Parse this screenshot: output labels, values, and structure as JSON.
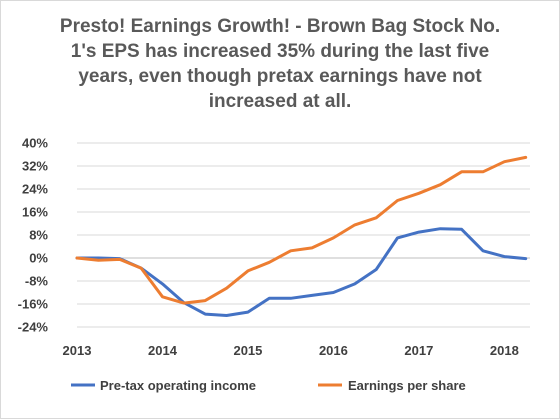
{
  "colors": {
    "series_pretax": "#4472c4",
    "series_eps": "#ed7d31",
    "grid": "#d9d9d9",
    "text": "#595959"
  },
  "chart_data": {
    "type": "line",
    "title_lines": [
      "Presto! Earnings Growth! - Brown Bag Stock No.",
      "1's EPS has increased 35% during the last five",
      "years, even though pretax earnings have not",
      "increased at all."
    ],
    "xlabel": "",
    "ylabel": "",
    "xlim": [
      2013,
      2018.3
    ],
    "ylim": [
      -0.24,
      0.4
    ],
    "x_ticks": [
      2013,
      2014,
      2015,
      2016,
      2017,
      2018
    ],
    "x_tick_labels": [
      "2013",
      "2014",
      "2015",
      "2016",
      "2017",
      "2018"
    ],
    "y_ticks": [
      -0.24,
      -0.16,
      -0.08,
      0.0,
      0.08,
      0.16,
      0.24,
      0.32,
      0.4
    ],
    "y_tick_labels": [
      "-24%",
      "-16%",
      "-8%",
      "0%",
      "8%",
      "16%",
      "24%",
      "32%",
      "40%"
    ],
    "grid": "horizontal",
    "legend_position": "bottom",
    "series": [
      {
        "name": "Pre-tax operating income",
        "color": "#4472c4",
        "x": [
          2013,
          2013.25,
          2013.5,
          2013.75,
          2014,
          2014.25,
          2014.5,
          2014.75,
          2015,
          2015.25,
          2015.5,
          2015.75,
          2016,
          2016.25,
          2016.5,
          2016.75,
          2017,
          2017.25,
          2017.5,
          2017.75,
          2018,
          2018.25
        ],
        "values": [
          0.0,
          0.0,
          -0.002,
          -0.035,
          -0.09,
          -0.155,
          -0.195,
          -0.2,
          -0.188,
          -0.14,
          -0.14,
          -0.13,
          -0.12,
          -0.09,
          -0.04,
          0.07,
          0.09,
          0.102,
          0.1,
          0.025,
          0.005,
          -0.002
        ]
      },
      {
        "name": "Earnings per share",
        "color": "#ed7d31",
        "x": [
          2013,
          2013.25,
          2013.5,
          2013.75,
          2014,
          2014.25,
          2014.5,
          2014.75,
          2015,
          2015.25,
          2015.5,
          2015.75,
          2016,
          2016.25,
          2016.5,
          2016.75,
          2017,
          2017.25,
          2017.5,
          2017.75,
          2018,
          2018.25
        ],
        "values": [
          0.0,
          -0.008,
          -0.005,
          -0.035,
          -0.135,
          -0.157,
          -0.148,
          -0.105,
          -0.045,
          -0.015,
          0.025,
          0.035,
          0.07,
          0.115,
          0.14,
          0.2,
          0.225,
          0.255,
          0.3,
          0.3,
          0.335,
          0.35
        ]
      }
    ]
  }
}
